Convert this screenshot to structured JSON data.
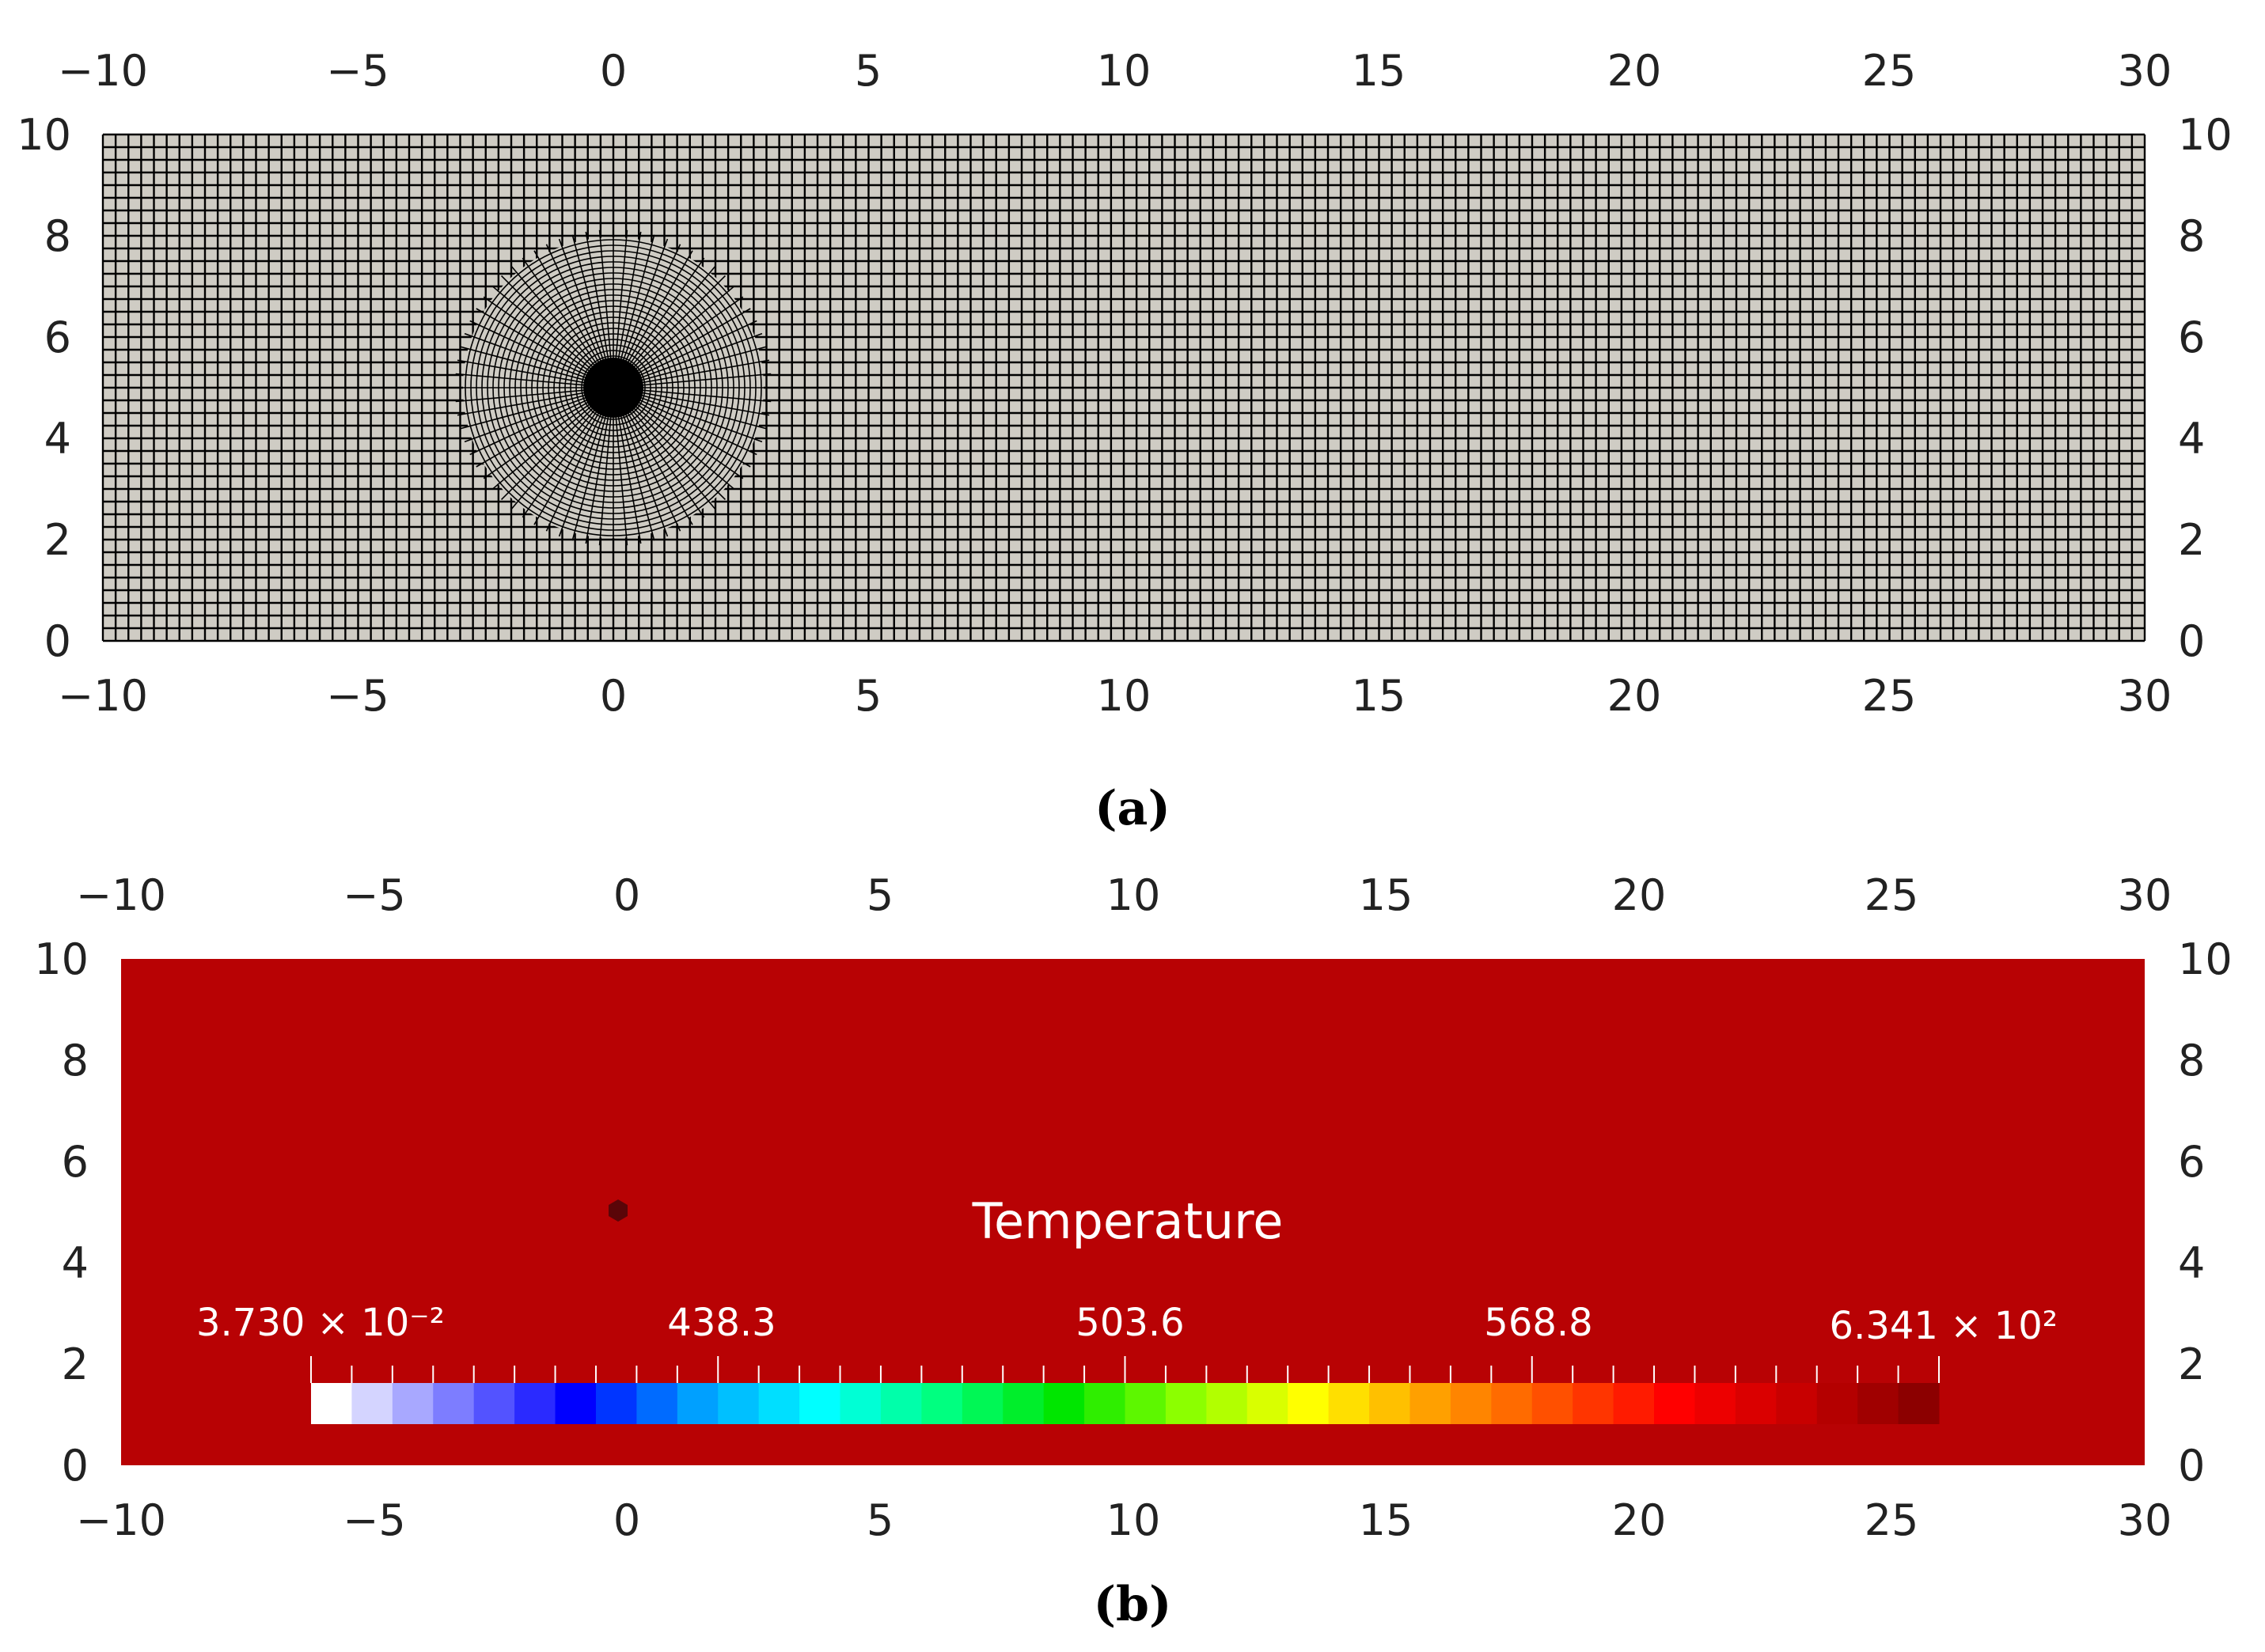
{
  "panels": [
    {
      "id": "a",
      "caption": "(a)",
      "xlim": [
        -10,
        30
      ],
      "ylim": [
        0,
        10
      ],
      "x_ticks": [
        "−10",
        "−5",
        "0",
        "5",
        "10",
        "15",
        "20",
        "25",
        "30"
      ],
      "y_ticks": [
        "0",
        "2",
        "4",
        "6",
        "8",
        "10"
      ],
      "content": "mesh",
      "mesh_background": "#cfccc4",
      "refinement_center": [
        0,
        5
      ]
    },
    {
      "id": "b",
      "caption": "(b)",
      "xlim": [
        -10,
        30
      ],
      "ylim": [
        0,
        10
      ],
      "x_ticks": [
        "−10",
        "−5",
        "0",
        "5",
        "10",
        "15",
        "20",
        "25",
        "30"
      ],
      "y_ticks": [
        "0",
        "2",
        "4",
        "6",
        "8",
        "10"
      ],
      "content": "temperature field",
      "field_color": "#b80204",
      "hot_spot": [
        0,
        5
      ],
      "hot_spot_color": "#5a0508"
    }
  ],
  "colorbar": {
    "title": "Temperature",
    "label_min": "3.730 × 10⁻²",
    "labels_mid": [
      "438.3",
      "503.6",
      "568.8"
    ],
    "label_max": "6.341 × 10²",
    "stops": [
      "#ffffff",
      "#7d7dff",
      "#0000ff",
      "#00a0ff",
      "#00ffff",
      "#00ff80",
      "#00e600",
      "#8cff00",
      "#ffff00",
      "#ffa000",
      "#ff5000",
      "#ff0000",
      "#c80000",
      "#8c0000"
    ],
    "segments": 40
  }
}
